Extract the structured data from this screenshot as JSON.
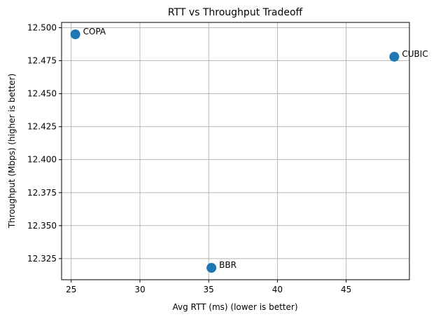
{
  "chart_data": {
    "type": "scatter",
    "title": "RTT vs Throughput Tradeoff",
    "xlabel": "Avg RTT (ms) (lower is better)",
    "ylabel": "Throughput (Mbps) (higher is better)",
    "xlim": [
      24.3,
      49.6
    ],
    "ylim": [
      12.309,
      12.504
    ],
    "xticks": [
      25,
      30,
      35,
      40,
      45
    ],
    "yticks": [
      12.325,
      12.35,
      12.375,
      12.4,
      12.425,
      12.45,
      12.475,
      12.5
    ],
    "xtick_labels": [
      "25",
      "30",
      "35",
      "40",
      "45"
    ],
    "ytick_labels": [
      "12.325",
      "12.350",
      "12.375",
      "12.400",
      "12.425",
      "12.450",
      "12.475",
      "12.500"
    ],
    "grid": true,
    "marker_color": "#1f77b4",
    "points": [
      {
        "label": "COPA",
        "x": 25.3,
        "y": 12.495
      },
      {
        "label": "CUBIC",
        "x": 48.5,
        "y": 12.478
      },
      {
        "label": "BBR",
        "x": 35.2,
        "y": 12.318
      }
    ]
  }
}
